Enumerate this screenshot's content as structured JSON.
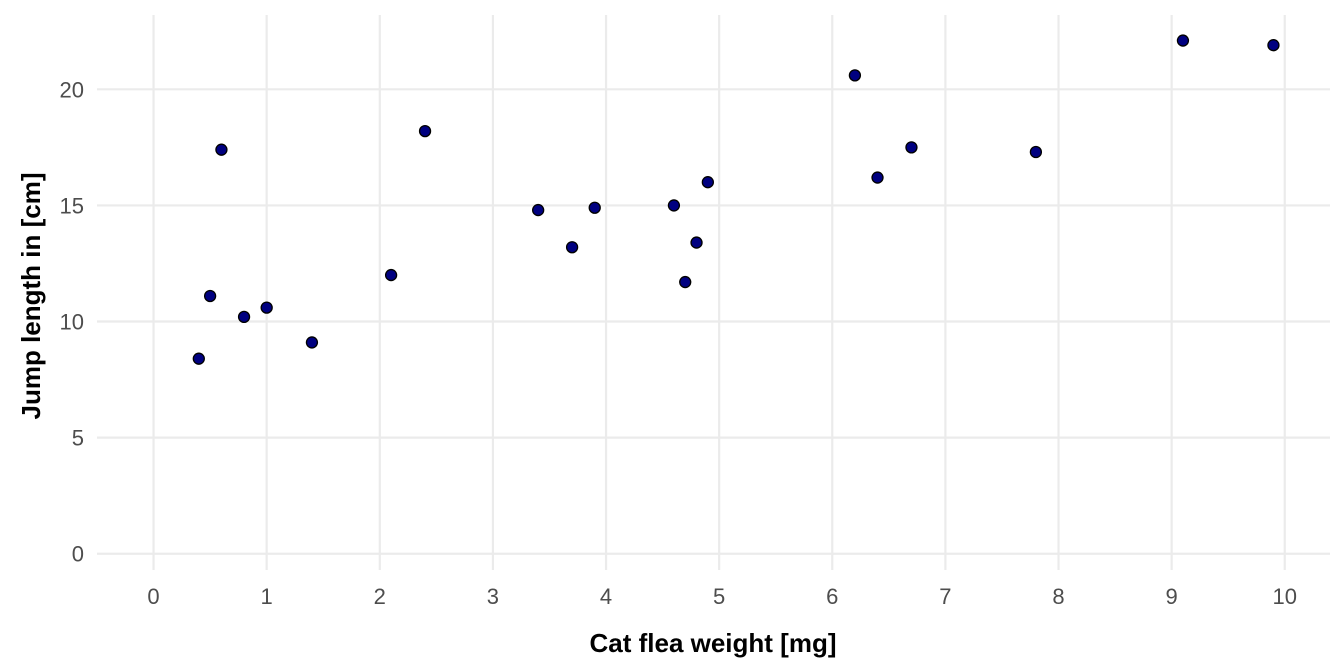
{
  "chart_data": {
    "type": "scatter",
    "title": "",
    "xlabel": "Cat flea weight [mg]",
    "ylabel": "Jump length in [cm]",
    "xlim": [
      -0.5,
      10.4
    ],
    "ylim": [
      -0.7,
      23.2
    ],
    "xticks": [
      0,
      1,
      2,
      3,
      4,
      5,
      6,
      7,
      8,
      9,
      10
    ],
    "yticks": [
      0,
      5,
      10,
      15,
      20
    ],
    "grid": true,
    "legend": "none",
    "point_fill": "#000080",
    "point_stroke": "#000000",
    "points": [
      {
        "x": 0.4,
        "y": 8.4
      },
      {
        "x": 0.5,
        "y": 11.1
      },
      {
        "x": 0.6,
        "y": 17.4
      },
      {
        "x": 0.8,
        "y": 10.2
      },
      {
        "x": 1.0,
        "y": 10.6
      },
      {
        "x": 1.4,
        "y": 9.1
      },
      {
        "x": 2.1,
        "y": 12.0
      },
      {
        "x": 2.4,
        "y": 18.2
      },
      {
        "x": 3.4,
        "y": 14.8
      },
      {
        "x": 3.7,
        "y": 13.2
      },
      {
        "x": 3.9,
        "y": 14.9
      },
      {
        "x": 4.6,
        "y": 15.0
      },
      {
        "x": 4.7,
        "y": 11.7
      },
      {
        "x": 4.8,
        "y": 13.4
      },
      {
        "x": 4.9,
        "y": 16.0
      },
      {
        "x": 6.2,
        "y": 20.6
      },
      {
        "x": 6.4,
        "y": 16.2
      },
      {
        "x": 6.7,
        "y": 17.5
      },
      {
        "x": 7.8,
        "y": 17.3
      },
      {
        "x": 9.1,
        "y": 22.1
      },
      {
        "x": 9.9,
        "y": 21.9
      }
    ]
  }
}
